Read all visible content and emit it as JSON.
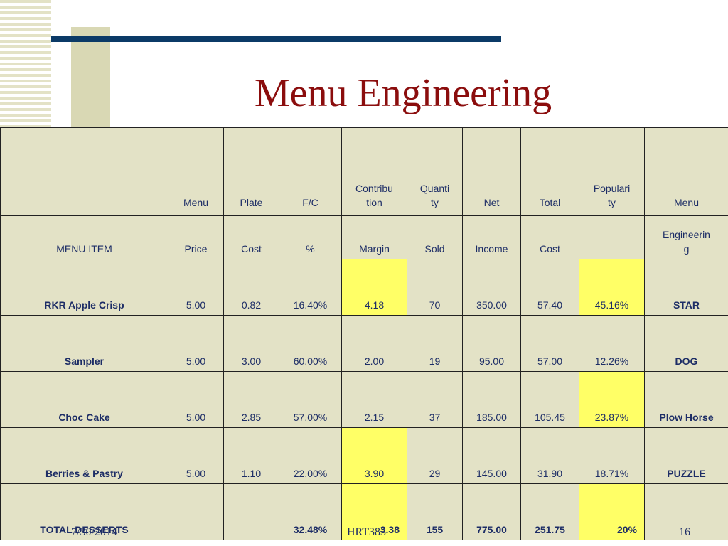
{
  "slide": {
    "title": "Menu Engineering",
    "footer": {
      "date": "7/30/2014",
      "course": "HRT383",
      "page": "16"
    }
  },
  "table": {
    "header_top": [
      "",
      "Menu",
      "Plate",
      "F/C",
      "Contribu\ntion",
      "Quanti\nty",
      "Net",
      "Total",
      "Populari\nty",
      "Menu"
    ],
    "header_bottom": [
      "MENU ITEM",
      "Price",
      "Cost",
      "%",
      "Margin",
      "Sold",
      "Income",
      "Cost",
      "",
      "Engineerin\ng"
    ],
    "rows": [
      {
        "name": "RKR Apple Crisp",
        "price": "5.00",
        "plate_cost": "0.82",
        "fc_pct": "16.40%",
        "margin": "4.18",
        "sold": "70",
        "income": "350.00",
        "total_cost": "57.40",
        "popularity": "45.16%",
        "engineering": "STAR",
        "margin_highlight": true,
        "popularity_highlight": true
      },
      {
        "name": "Sampler",
        "price": "5.00",
        "plate_cost": "3.00",
        "fc_pct": "60.00%",
        "margin": "2.00",
        "sold": "19",
        "income": "95.00",
        "total_cost": "57.00",
        "popularity": "12.26%",
        "engineering": "DOG",
        "margin_highlight": false,
        "popularity_highlight": false
      },
      {
        "name": "Choc Cake",
        "price": "5.00",
        "plate_cost": "2.85",
        "fc_pct": "57.00%",
        "margin": "2.15",
        "sold": "37",
        "income": "185.00",
        "total_cost": "105.45",
        "popularity": "23.87%",
        "engineering": "Plow Horse",
        "margin_highlight": false,
        "popularity_highlight": true
      },
      {
        "name": "Berries & Pastry",
        "price": "5.00",
        "plate_cost": "1.10",
        "fc_pct": "22.00%",
        "margin": "3.90",
        "sold": "29",
        "income": "145.00",
        "total_cost": "31.90",
        "popularity": "18.71%",
        "engineering": "PUZZLE",
        "margin_highlight": true,
        "popularity_highlight": false
      }
    ],
    "total": {
      "name": "TOTAL DESSERTS",
      "price": "",
      "plate_cost": "",
      "fc_pct": "32.48%",
      "margin": "3.38",
      "sold": "155",
      "income": "775.00",
      "total_cost": "251.75",
      "popularity": "20%",
      "engineering": ""
    },
    "highlight_color": "#ffff66",
    "cell_color": "#e3e2c6",
    "text_color": "#1d2d66",
    "title_color": "#8b0d0d"
  }
}
